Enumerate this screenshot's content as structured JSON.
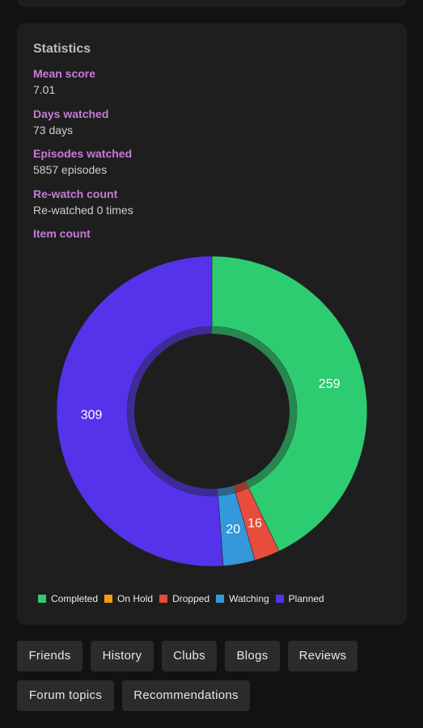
{
  "statistics": {
    "title": "Statistics",
    "items": [
      {
        "label": "Mean score",
        "value": "7.01"
      },
      {
        "label": "Days watched",
        "value": "73 days"
      },
      {
        "label": "Episodes watched",
        "value": "5857 episodes"
      },
      {
        "label": "Re-watch count",
        "value": "Re-watched 0 times"
      }
    ],
    "item_count_label": "Item count"
  },
  "chart_data": {
    "type": "pie",
    "style": "donut",
    "categories": [
      "Completed",
      "On Hold",
      "Dropped",
      "Watching",
      "Planned"
    ],
    "values": [
      259,
      0,
      16,
      20,
      309
    ],
    "value_labels": [
      "259",
      "",
      "16",
      "20",
      "309"
    ],
    "colors": [
      "#2ecc71",
      "#f39c12",
      "#e74c3c",
      "#3498db",
      "#5533ea"
    ],
    "legend_position": "bottom-left"
  },
  "nav_buttons": [
    "Friends",
    "History",
    "Clubs",
    "Blogs",
    "Reviews",
    "Forum topics",
    "Recommendations"
  ]
}
